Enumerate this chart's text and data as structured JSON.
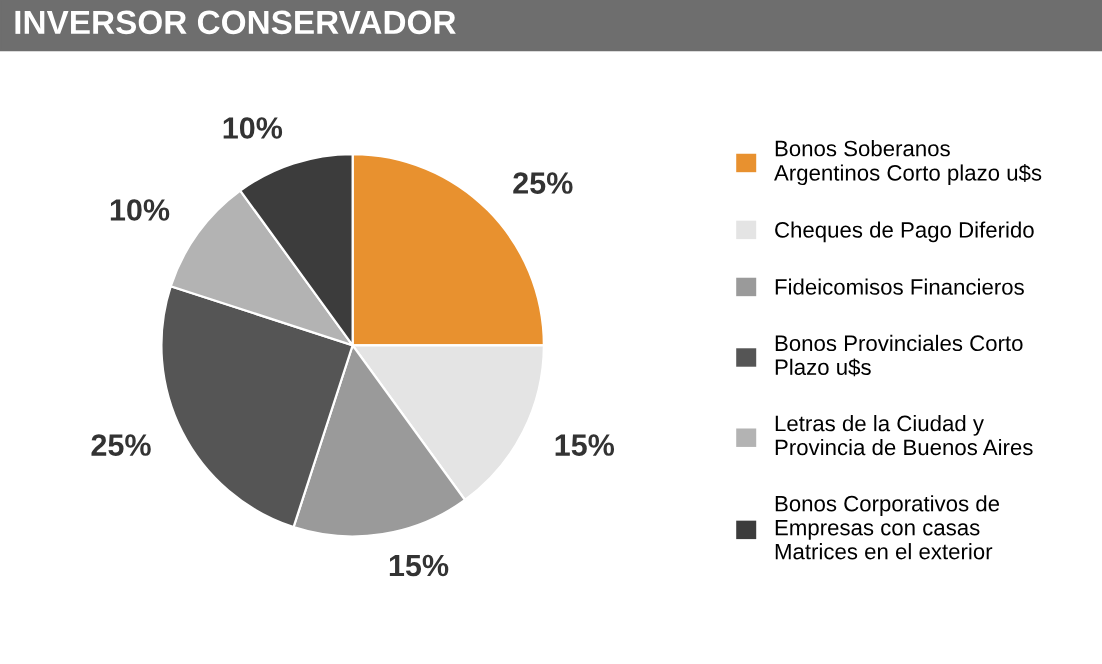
{
  "chart_data": {
    "type": "pie",
    "title": "INVERSOR CONSERVADOR",
    "categories": [
      "Bonos Soberanos\nArgentinos Corto plazo u$s",
      "Cheques de Pago Diferido",
      "Fideicomisos Financieros",
      "Bonos Provinciales Corto\nPlazo u$s",
      "Letras de la Ciudad y\nProvincia de Buenos Aires",
      "Bonos Corporativos de\nEmpresas con casas\nMatrices en el exterior"
    ],
    "values": [
      25,
      15,
      15,
      25,
      10,
      10
    ],
    "value_labels": [
      "25%",
      "15%",
      "15%",
      "25%",
      "10%",
      "10%"
    ],
    "colors": [
      "#e8912f",
      "#e4e4e4",
      "#9a9a9a",
      "#555555",
      "#b3b3b3",
      "#3c3c3c"
    ],
    "legend": "right"
  }
}
